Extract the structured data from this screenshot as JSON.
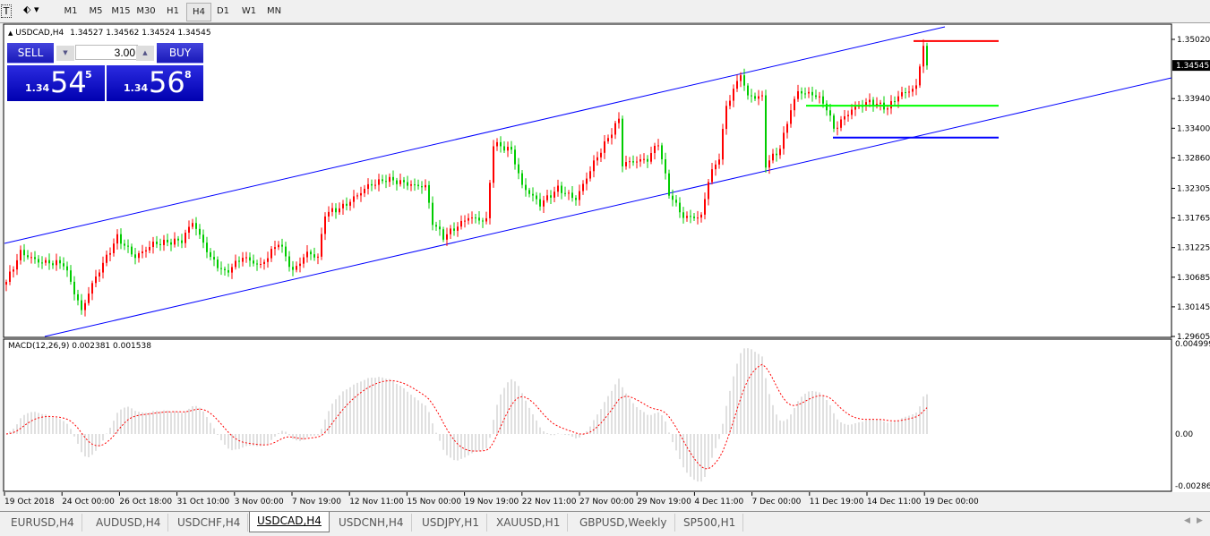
{
  "toolbar": {
    "timeframes": [
      "M1",
      "M5",
      "M15",
      "M30",
      "H1",
      "H4",
      "D1",
      "W1",
      "MN"
    ],
    "selected": "H4"
  },
  "chart_header": {
    "symbol": "USDCAD,H4",
    "ohlc": "1.34527 1.34562 1.34524 1.34545"
  },
  "trade_panel": {
    "sell_label": "SELL",
    "buy_label": "BUY",
    "lot": "3.00",
    "sell_prefix": "1.34",
    "sell_big": "54",
    "sell_small": "5",
    "buy_prefix": "1.34",
    "buy_big": "56",
    "buy_small": "8"
  },
  "price_axis": [
    "1.35020",
    "1.33940",
    "1.33400",
    "1.32860",
    "1.32305",
    "1.31765",
    "1.31225",
    "1.30685",
    "1.30145",
    "1.29605"
  ],
  "current_price": "1.34545",
  "macd": {
    "label": "MACD(12,26,9) 0.002381 0.001538",
    "axis": [
      "0.004999",
      "0.00",
      "-0.002868"
    ]
  },
  "time_axis": [
    "19 Oct 2018",
    "24 Oct 00:00",
    "26 Oct 18:00",
    "31 Oct 10:00",
    "3 Nov 00:00",
    "7 Nov 19:00",
    "12 Nov 11:00",
    "15 Nov 00:00",
    "19 Nov 19:00",
    "22 Nov 11:00",
    "27 Nov 00:00",
    "29 Nov 19:00",
    "4 Dec 11:00",
    "7 Dec 00:00",
    "11 Dec 19:00",
    "14 Dec 11:00",
    "19 Dec 00:00"
  ],
  "levels": {
    "resistance": {
      "price": 1.3499,
      "color": "#ff0000"
    },
    "middle": {
      "price": 1.3381,
      "color": "#00ff00"
    },
    "support": {
      "price": 1.3323,
      "color": "#0000ff"
    }
  },
  "colors": {
    "bull": "#ff0000",
    "bear": "#00cc00",
    "channel": "#0000ff",
    "macd_hist": "#c0c0c0",
    "macd_signal": "#ff0000"
  },
  "chart_data": {
    "type": "candlestick",
    "symbol": "USDCAD",
    "timeframe": "H4",
    "ylim": [
      1.29605,
      1.3502
    ],
    "close_waypoints": [
      [
        0,
        1.306
      ],
      [
        4,
        1.3117
      ],
      [
        9,
        1.3101
      ],
      [
        16,
        1.3093
      ],
      [
        21,
        1.3003
      ],
      [
        24,
        1.3052
      ],
      [
        31,
        1.3142
      ],
      [
        36,
        1.3109
      ],
      [
        41,
        1.3133
      ],
      [
        49,
        1.3133
      ],
      [
        52,
        1.3166
      ],
      [
        57,
        1.3101
      ],
      [
        61,
        1.3076
      ],
      [
        66,
        1.3109
      ],
      [
        71,
        1.3093
      ],
      [
        76,
        1.3133
      ],
      [
        80,
        1.3076
      ],
      [
        84,
        1.3109
      ],
      [
        87,
        1.3101
      ],
      [
        89,
        1.3182
      ],
      [
        94,
        1.3199
      ],
      [
        101,
        1.3239
      ],
      [
        106,
        1.3248
      ],
      [
        114,
        1.3231
      ],
      [
        117,
        1.3231
      ],
      [
        119,
        1.3166
      ],
      [
        122,
        1.3142
      ],
      [
        129,
        1.3182
      ],
      [
        134,
        1.3174
      ],
      [
        136,
        1.3313
      ],
      [
        141,
        1.3297
      ],
      [
        144,
        1.3231
      ],
      [
        149,
        1.3199
      ],
      [
        154,
        1.3231
      ],
      [
        159,
        1.3215
      ],
      [
        164,
        1.328
      ],
      [
        171,
        1.3354
      ],
      [
        172,
        1.3272
      ],
      [
        179,
        1.328
      ],
      [
        182,
        1.3313
      ],
      [
        185,
        1.3223
      ],
      [
        189,
        1.3182
      ],
      [
        194,
        1.3182
      ],
      [
        196,
        1.3248
      ],
      [
        199,
        1.3288
      ],
      [
        201,
        1.3378
      ],
      [
        205,
        1.3435
      ],
      [
        207,
        1.3394
      ],
      [
        211,
        1.3394
      ],
      [
        212,
        1.3272
      ],
      [
        216,
        1.3305
      ],
      [
        219,
        1.3378
      ],
      [
        221,
        1.3411
      ],
      [
        226,
        1.3403
      ],
      [
        229,
        1.3378
      ],
      [
        231,
        1.3337
      ],
      [
        236,
        1.337
      ],
      [
        241,
        1.3386
      ],
      [
        246,
        1.3378
      ],
      [
        249,
        1.3403
      ],
      [
        254,
        1.3419
      ],
      [
        256,
        1.3496
      ],
      [
        257,
        1.34545
      ]
    ]
  },
  "tabs": [
    "EURUSD,H4",
    "AUDUSD,H4",
    "USDCHF,H4",
    "USDCAD,H4",
    "USDCNH,H4",
    "USDJPY,H1",
    "XAUUSD,H1",
    "GBPUSD,Weekly",
    "SP500,H1"
  ],
  "active_tab": "USDCAD,H4"
}
